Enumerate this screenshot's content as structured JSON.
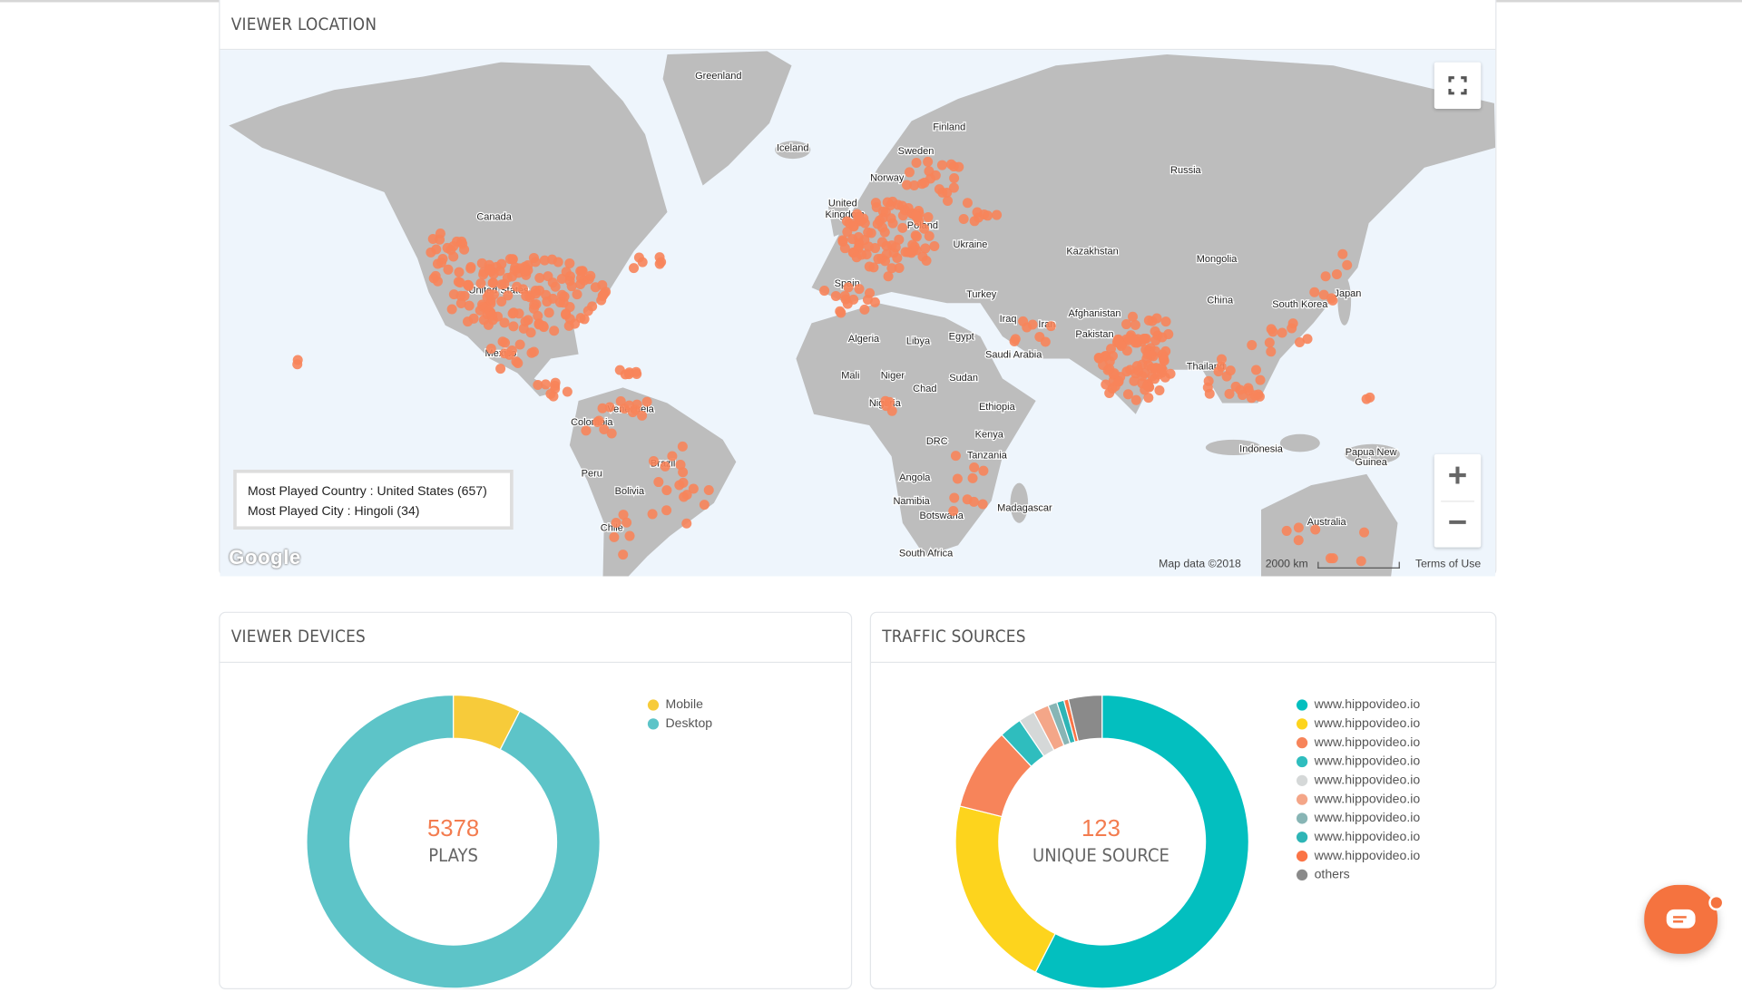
{
  "map_section": {
    "title": "VIEWER LOCATION",
    "info": {
      "country_label": "Most Played Country : ",
      "country_value": "United States (657)",
      "city_label": "Most Played City : ",
      "city_value": "Hingoli (34)"
    },
    "labels": [
      "Greenland",
      "Iceland",
      "Finland",
      "Sweden",
      "Norway",
      "Russia",
      "Canada",
      "United",
      "Kingdom",
      "Poland",
      "Ukraine",
      "Kazakhstan",
      "Mongolia",
      "Spain",
      "Turkey",
      "China",
      "South Korea",
      "Japan",
      "Afghanistan",
      "Iran",
      "Iraq",
      "Pakistan",
      "Algeria",
      "Libya",
      "Egypt",
      "Saudi Arabia",
      "Mexico",
      "Thailand",
      "Mali",
      "Niger",
      "Chad",
      "Sudan",
      "Venezuela",
      "Colombia",
      "Nigeria",
      "Ethiopia",
      "Kenya",
      "DRC",
      "Tanzania",
      "Indonesia",
      "Papua New",
      "Guinea",
      "Peru",
      "Brazil",
      "Bolivia",
      "Angola",
      "Namibia",
      "Botswana",
      "Madagascar",
      "Chile",
      "Australia",
      "South Africa",
      "United States"
    ],
    "attribution": "Map data ©2018",
    "scale_label": "2000 km",
    "terms": "Terms of Use",
    "google": "Google",
    "marker_color": "#F7845A",
    "land_color": "#BDBDBD",
    "water_color": "#EEF5FC",
    "controls": {
      "fullscreen": "fullscreen-icon",
      "zoom_in": "+",
      "zoom_out": "−"
    }
  },
  "devices": {
    "title": "VIEWER DEVICES",
    "total": "5378",
    "total_label": "PLAYS",
    "series": [
      {
        "name": "Mobile",
        "share": 0.075,
        "color": "#F7CB3A"
      },
      {
        "name": "Desktop",
        "share": 0.925,
        "color": "#5DC4C8"
      }
    ]
  },
  "traffic": {
    "title": "TRAFFIC SOURCES",
    "total": "123",
    "total_label": "UNIQUE SOURCE",
    "series": [
      {
        "name": "www.hippovideo.io",
        "share": 0.575,
        "color": "#03BFBF"
      },
      {
        "name": "www.hippovideo.io",
        "share": 0.214,
        "color": "#FDD41D"
      },
      {
        "name": "www.hippovideo.io",
        "share": 0.091,
        "color": "#F7845A"
      },
      {
        "name": "www.hippovideo.io",
        "share": 0.025,
        "color": "#2FBDBE"
      },
      {
        "name": "www.hippovideo.io",
        "share": 0.018,
        "color": "#D5D8D8"
      },
      {
        "name": "www.hippovideo.io",
        "share": 0.017,
        "color": "#F4A688"
      },
      {
        "name": "www.hippovideo.io",
        "share": 0.01,
        "color": "#88B5B5"
      },
      {
        "name": "www.hippovideo.io",
        "share": 0.008,
        "color": "#2EB5B6"
      },
      {
        "name": "www.hippovideo.io",
        "share": 0.005,
        "color": "#FB7446"
      },
      {
        "name": "others",
        "share": 0.037,
        "color": "#8A8A8A"
      }
    ]
  },
  "chat": {
    "icon": "chat-bubble-icon"
  }
}
